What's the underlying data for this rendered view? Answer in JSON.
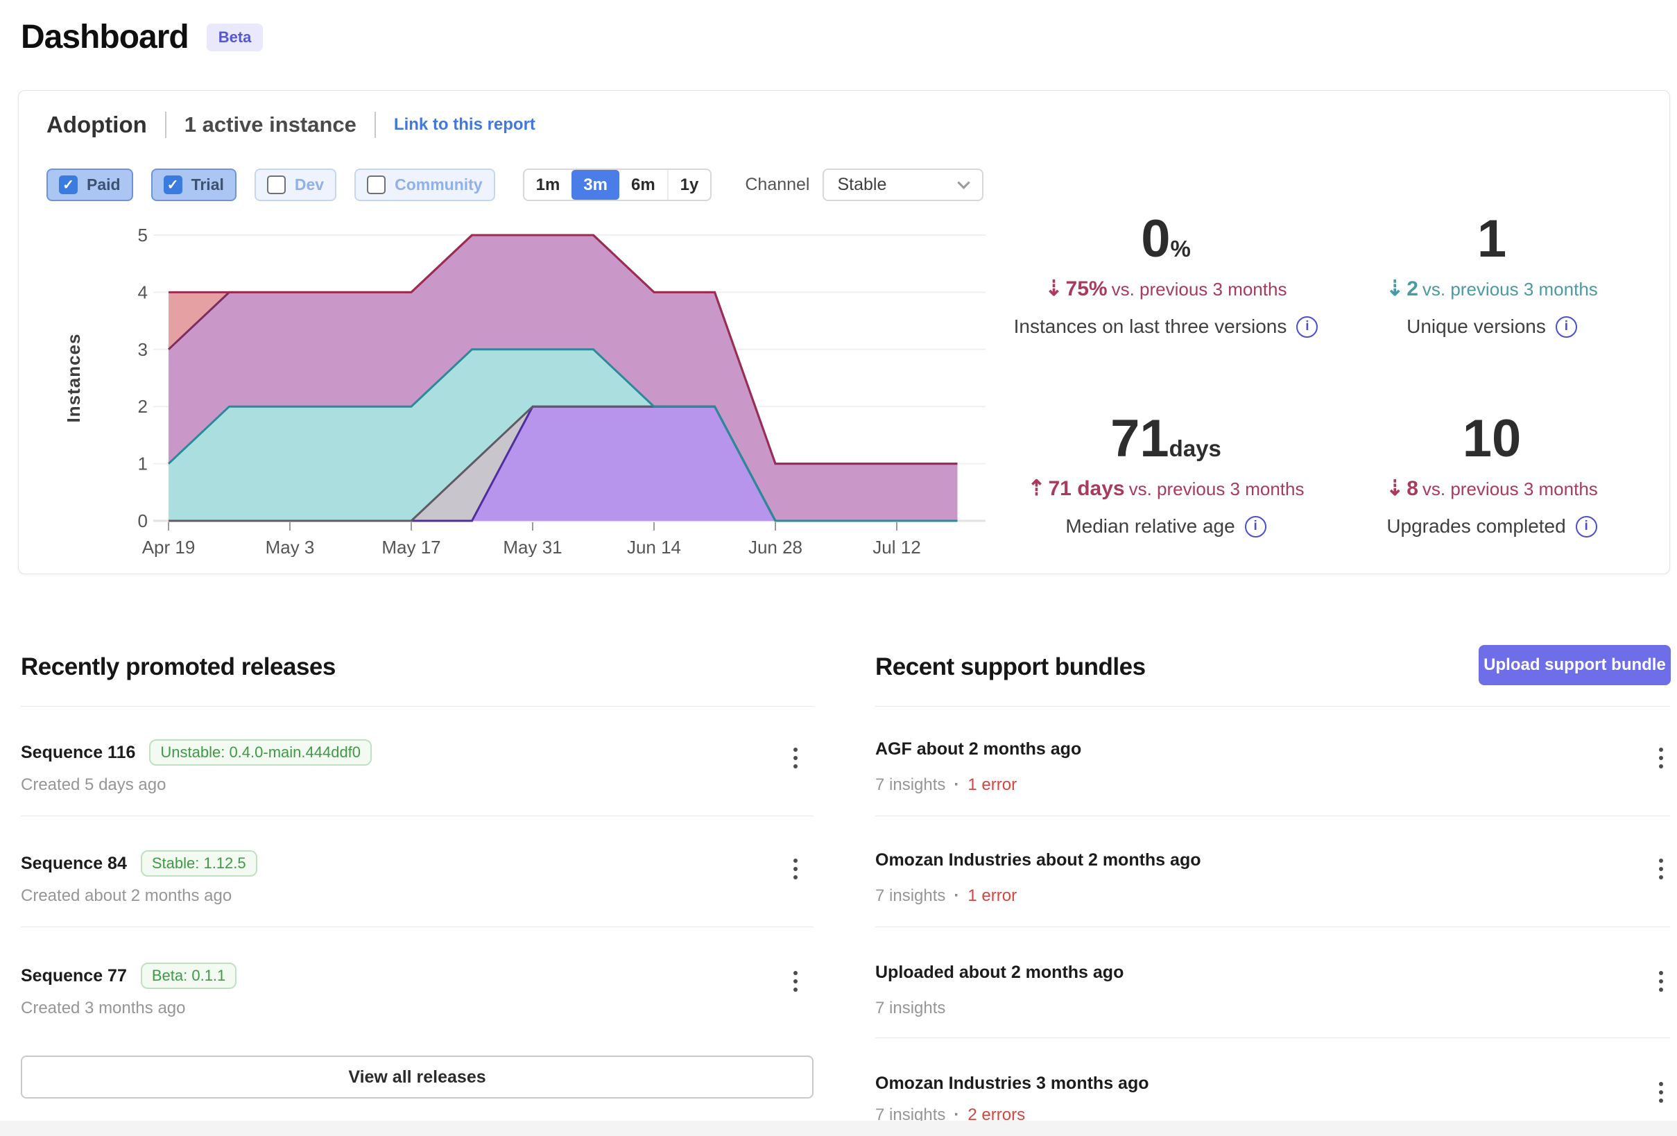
{
  "page": {
    "title": "Dashboard",
    "beta_badge": "Beta"
  },
  "icons": {
    "check": "✓",
    "info": "i",
    "dot": "·"
  },
  "colors": {
    "accent_blue": "#4a7de7",
    "link_blue": "#4277e1",
    "indigo_button": "#6e6ee8",
    "delta_red": "#a93a5c",
    "delta_teal": "#4a9aa4",
    "error_red": "#d64541",
    "badge_green": "#3e9a44",
    "beta_purple": "#5757d1"
  },
  "adoption": {
    "title": "Adoption",
    "active_instances": "1 active instance",
    "link_label": "Link to this report",
    "filters": [
      {
        "label": "Paid",
        "checked": true
      },
      {
        "label": "Trial",
        "checked": true
      },
      {
        "label": "Dev",
        "checked": false
      },
      {
        "label": "Community",
        "checked": false
      }
    ],
    "time_ranges": [
      {
        "label": "1m",
        "selected": false
      },
      {
        "label": "3m",
        "selected": true
      },
      {
        "label": "6m",
        "selected": false
      },
      {
        "label": "1y",
        "selected": false
      }
    ],
    "channel_label": "Channel",
    "channel_value": "Stable",
    "stats": [
      {
        "value": "0",
        "unit": "%",
        "arrow": "⇣",
        "delta": "75%",
        "delta_suffix": "vs. previous 3 months",
        "tone": "red",
        "label": "Instances on last three versions"
      },
      {
        "value": "1",
        "unit": "",
        "arrow": "⇣",
        "delta": "2",
        "delta_suffix": "vs. previous 3 months",
        "tone": "teal",
        "label": "Unique versions"
      },
      {
        "value": "71",
        "unit": "days",
        "arrow": "⇡",
        "delta": "71 days",
        "delta_suffix": "vs. previous 3 months",
        "tone": "red",
        "label": "Median relative age"
      },
      {
        "value": "10",
        "unit": "",
        "arrow": "⇣",
        "delta": "8",
        "delta_suffix": "vs. previous 3 months",
        "tone": "red",
        "label": "Upgrades completed"
      }
    ]
  },
  "chart_data": {
    "type": "area",
    "title": "",
    "xlabel": "",
    "ylabel": "Instances",
    "ylim": [
      0,
      5
    ],
    "yticks": [
      0,
      1,
      2,
      3,
      4,
      5
    ],
    "grid": "horizontal",
    "legend": "none",
    "x": [
      "Apr 19",
      "Apr 26",
      "May 3",
      "May 10",
      "May 17",
      "May 24",
      "May 31",
      "Jun 7",
      "Jun 14",
      "Jun 21",
      "Jun 28",
      "Jul 5",
      "Jul 12",
      "Jul 19"
    ],
    "x_tick_labels": [
      "Apr 19",
      "May 3",
      "May 17",
      "May 31",
      "Jun 14",
      "Jun 28",
      "Jul 12"
    ],
    "series": [
      {
        "name": "version-area-salmon",
        "values": [
          4,
          4,
          4,
          4,
          4,
          5,
          5,
          5,
          4,
          4,
          1,
          1,
          1,
          1
        ],
        "fill": "#e5a0a3",
        "stroke": "#9b2c52"
      },
      {
        "name": "version-area-magenta",
        "values": [
          3,
          4,
          4,
          4,
          4,
          5,
          5,
          5,
          4,
          4,
          1,
          1,
          1,
          1
        ],
        "fill": "#c998c8",
        "stroke": "#7c2d62"
      },
      {
        "name": "version-area-teal",
        "values": [
          1,
          2,
          2,
          2,
          2,
          3,
          3,
          3,
          2,
          2,
          0,
          0,
          0,
          0
        ],
        "fill": "#abdfdf",
        "stroke": "#2a8a99"
      },
      {
        "name": "version-area-gray",
        "values": [
          0,
          0,
          0,
          0,
          0,
          1,
          2,
          2,
          2,
          2,
          0,
          0,
          0,
          0
        ],
        "fill": "#c9c5cd",
        "stroke": "#5f5a64"
      },
      {
        "name": "version-area-violet",
        "values": [
          0,
          0,
          0,
          0,
          0,
          0,
          2,
          2,
          2,
          2,
          0,
          0,
          0,
          0
        ],
        "fill": "#b795ec",
        "stroke": "#4f2fa0"
      }
    ]
  },
  "releases": {
    "title": "Recently promoted releases",
    "view_all": "View all releases",
    "items": [
      {
        "name": "Sequence 116",
        "badge": "Unstable: 0.4.0-main.444ddf0",
        "created": "Created 5 days ago"
      },
      {
        "name": "Sequence 84",
        "badge": "Stable: 1.12.5",
        "created": "Created about 2 months ago"
      },
      {
        "name": "Sequence 77",
        "badge": "Beta: 0.1.1",
        "created": "Created 3 months ago"
      }
    ]
  },
  "support_bundles": {
    "title": "Recent support bundles",
    "upload_button": "Upload support bundle",
    "items": [
      {
        "name": "AGF about 2 months ago",
        "insights": "7 insights",
        "errors": "1 error"
      },
      {
        "name": "Omozan Industries about 2 months ago",
        "insights": "7 insights",
        "errors": "1 error"
      },
      {
        "name": "Uploaded about 2 months ago",
        "insights": "7 insights",
        "errors": ""
      },
      {
        "name": "Omozan Industries 3 months ago",
        "insights": "7 insights",
        "errors": "2 errors"
      }
    ]
  }
}
